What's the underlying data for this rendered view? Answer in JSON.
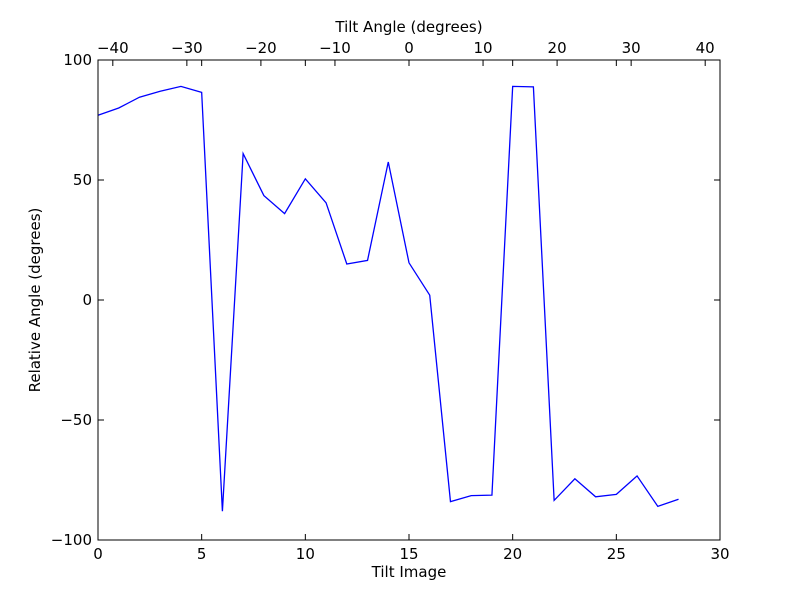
{
  "chart_data": {
    "type": "line",
    "title": "",
    "xlabel": "Tilt Image",
    "ylabel": "Relative Angle (degrees)",
    "x2label": "Tilt Angle (degrees)",
    "xlim": [
      0,
      30
    ],
    "ylim": [
      -100,
      100
    ],
    "x2lim": [
      -42,
      42
    ],
    "xticks": [
      0,
      5,
      10,
      15,
      20,
      25,
      30
    ],
    "yticks": [
      -100,
      -50,
      0,
      50,
      100
    ],
    "x2ticks": [
      -40,
      -30,
      -20,
      -10,
      0,
      10,
      20,
      30,
      40
    ],
    "xtick_labels": [
      "0",
      "5",
      "10",
      "15",
      "20",
      "25",
      "30"
    ],
    "ytick_labels": [
      "−100",
      "−50",
      "0",
      "50",
      "100"
    ],
    "x2tick_labels": [
      "−40",
      "−30",
      "−20",
      "−10",
      "0",
      "10",
      "20",
      "30",
      "40"
    ],
    "grid": false,
    "series": [
      {
        "color": "#0000ff",
        "x": [
          0,
          1,
          2,
          3,
          4,
          5,
          6,
          7,
          8,
          9,
          10,
          11,
          12,
          13,
          14,
          15,
          16,
          17,
          18,
          19,
          20,
          21,
          22,
          23,
          24,
          25,
          26,
          27,
          28
        ],
        "y": [
          77,
          80,
          84.5,
          87,
          89,
          86.5,
          -88,
          61,
          43.5,
          36,
          50.5,
          40.5,
          15,
          16.5,
          57.5,
          15.5,
          2,
          -84,
          -81.5,
          -81.3,
          89,
          88.8,
          -83.5,
          -74.5,
          -82,
          -81,
          -73.3,
          -86,
          -83
        ]
      }
    ]
  }
}
